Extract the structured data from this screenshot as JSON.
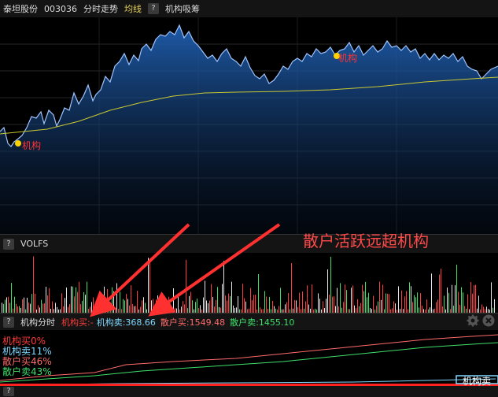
{
  "header": {
    "stock_name": "泰坦股份",
    "stock_code": "003036",
    "mode_label": "分时走势",
    "avg_line_label": "均线",
    "help_label": "?",
    "indicator_label": "机构吸筹"
  },
  "price_chart": {
    "colors": {
      "price": "#2b64c9",
      "fill_top": "#1c5aa8",
      "avg": "#c8c832",
      "grid": "#2a2a2a"
    },
    "marker_label": "机构",
    "markers": [
      {
        "x": 20,
        "label": "机构"
      },
      {
        "x": 425,
        "label": "机构"
      }
    ]
  },
  "volume_panel": {
    "help_label": "?",
    "title": "VOLFS"
  },
  "annotation": {
    "text": "散户活跃远超机构",
    "color": "#ff4a4a"
  },
  "stats_bar": {
    "help_label": "?",
    "title": "机构分时",
    "items": [
      {
        "label": "机构买:",
        "value": "-",
        "color": "#ff3b3b"
      },
      {
        "label": "机构卖:",
        "value": "368.66",
        "color": "#7fd8ff"
      },
      {
        "label": "散户买:",
        "value": "1549.48",
        "color": "#ff6b6b"
      },
      {
        "label": "散户卖:",
        "value": "1455.10",
        "color": "#3ee06a"
      }
    ]
  },
  "legend": [
    {
      "text": "机构买0%",
      "color": "#ff3b3b"
    },
    {
      "text": "机构卖11%",
      "color": "#7fd8ff"
    },
    {
      "text": "散户买46%",
      "color": "#ff6b6b"
    },
    {
      "text": "散户卖43%",
      "color": "#3ee06a"
    }
  ],
  "bottom_right_label": "机构卖",
  "bottom_tab_label": "?"
}
